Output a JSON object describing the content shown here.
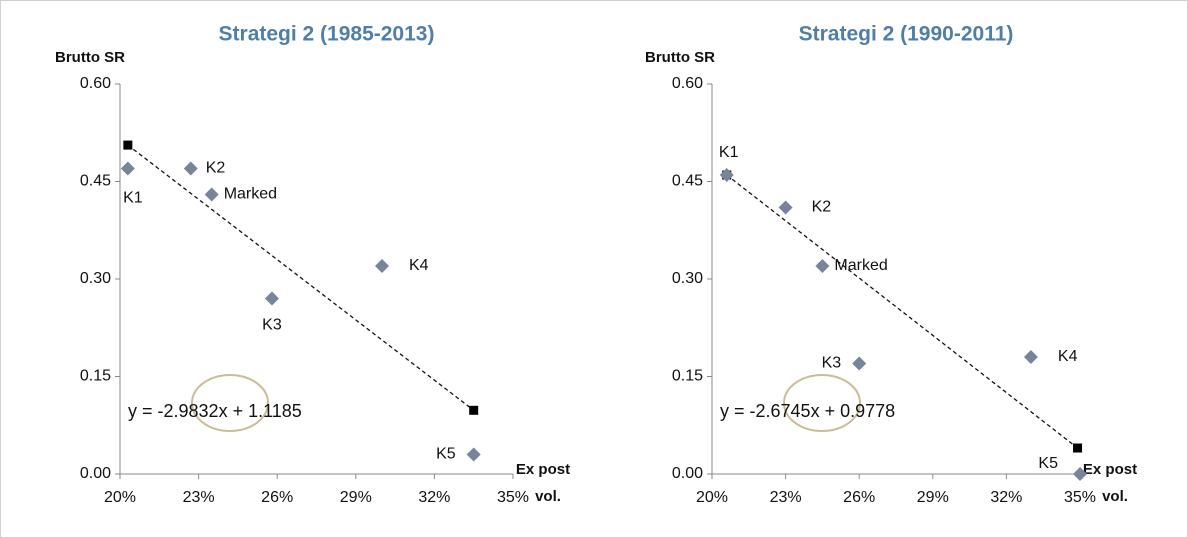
{
  "chart_data": [
    {
      "type": "scatter",
      "title": "Strategi 2 (1985-2013)",
      "ylabel": "Brutto SR",
      "xlabel": [
        "Ex post",
        "vol."
      ],
      "color": "#77849a",
      "labels": [
        "K1",
        "K2",
        "Marked",
        "K3",
        "K4",
        "K5"
      ],
      "x": [
        20.3,
        22.7,
        23.5,
        25.8,
        30.0,
        33.5
      ],
      "values": [
        0.47,
        0.47,
        0.43,
        0.27,
        0.32,
        0.03
      ],
      "trendline": {
        "label": "y = -2.9832x + 1.1185",
        "x": [
          20.3,
          33.5
        ],
        "values": [
          0.506,
          0.098
        ]
      },
      "xlim": [
        20,
        35
      ],
      "ylim": [
        0,
        0.6
      ],
      "xticks": [
        {
          "value": 20,
          "label": "20%"
        },
        {
          "value": 23,
          "label": "23%"
        },
        {
          "value": 26,
          "label": "26%"
        },
        {
          "value": 29,
          "label": "29%"
        },
        {
          "value": 32,
          "label": "32%"
        },
        {
          "value": 35,
          "label": "35%"
        }
      ],
      "yticks": [
        {
          "value": 0,
          "label": "0.00"
        },
        {
          "value": 0.15,
          "label": "0.15"
        },
        {
          "value": 0.3,
          "label": "0.30"
        },
        {
          "value": 0.45,
          "label": "0.45"
        },
        {
          "value": 0.6,
          "label": "0.60"
        }
      ]
    },
    {
      "type": "scatter",
      "title": "Strategi 2 (1990-2011)",
      "ylabel": "Brutto SR",
      "xlabel": [
        "Ex post",
        "vol."
      ],
      "color": "#77849a",
      "labels": [
        "K1",
        "K2",
        "Marked",
        "K3",
        "K4",
        "K5"
      ],
      "x": [
        20.6,
        23.0,
        24.5,
        26.0,
        33.0,
        35.0
      ],
      "values": [
        0.46,
        0.41,
        0.32,
        0.17,
        0.18,
        0.0
      ],
      "trendline": {
        "label": "y = -2.6745x + 0.9778",
        "x": [
          20.6,
          34.9
        ],
        "values": [
          0.46,
          0.04
        ]
      },
      "xlim": [
        20,
        35
      ],
      "ylim": [
        0,
        0.6
      ],
      "xticks": [
        {
          "value": 20,
          "label": "20%"
        },
        {
          "value": 23,
          "label": "23%"
        },
        {
          "value": 26,
          "label": "26%"
        },
        {
          "value": 29,
          "label": "29%"
        },
        {
          "value": 32,
          "label": "32%"
        },
        {
          "value": 35,
          "label": "35%"
        }
      ],
      "yticks": [
        {
          "value": 0,
          "label": "0.00"
        },
        {
          "value": 0.15,
          "label": "0.15"
        },
        {
          "value": 0.3,
          "label": "0.30"
        },
        {
          "value": 0.45,
          "label": "0.45"
        },
        {
          "value": 0.6,
          "label": "0.60"
        }
      ]
    }
  ]
}
